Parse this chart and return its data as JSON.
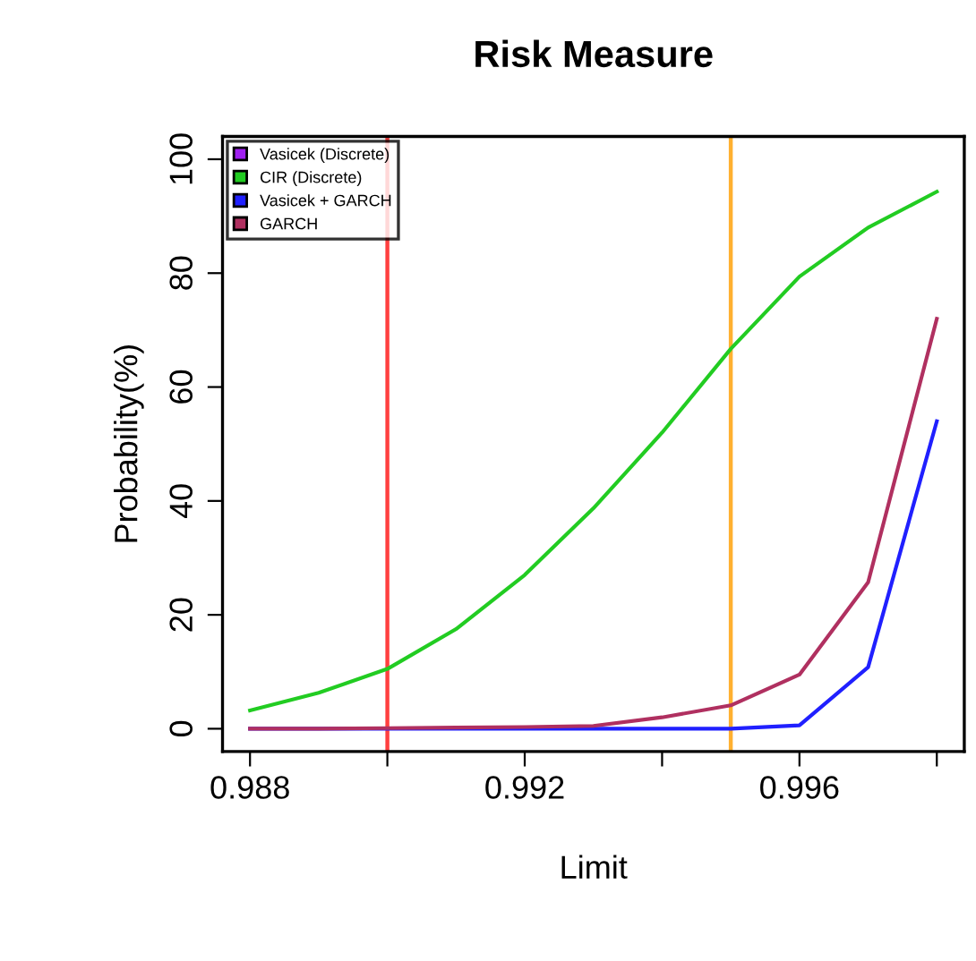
{
  "chart_data": {
    "type": "line",
    "title": "Risk Measure",
    "xlabel": "Limit",
    "ylabel": "Probability(%)",
    "x": [
      0.988,
      0.989,
      0.99,
      0.991,
      0.992,
      0.993,
      0.994,
      0.995,
      0.996,
      0.997,
      0.998
    ],
    "series": [
      {
        "name": "Vasicek (Discrete)",
        "color": "#a020f0",
        "values": [
          null,
          null,
          null,
          null,
          null,
          null,
          null,
          null,
          null,
          null,
          null
        ]
      },
      {
        "name": "CIR (Discrete)",
        "color": "#22cc22",
        "values": [
          3.2,
          6.3,
          10.5,
          17.5,
          27,
          38.7,
          52,
          66.7,
          79.4,
          88,
          94.3
        ]
      },
      {
        "name": "Vasicek + GARCH",
        "color": "#2020ff",
        "values": [
          0,
          0,
          0,
          0,
          0,
          0,
          0,
          0,
          0.6,
          10.8,
          54
        ]
      },
      {
        "name": "GARCH",
        "color": "#b03060",
        "values": [
          0,
          0,
          0.1,
          0.2,
          0.3,
          0.5,
          2,
          4.1,
          9.5,
          25.7,
          72
        ]
      }
    ],
    "xlim": [
      0.9876,
      0.9984
    ],
    "ylim": [
      -4,
      104
    ],
    "xticks": [
      0.988,
      {
        "value": 0.99,
        "label": null
      },
      0.992,
      {
        "value": 0.994,
        "label": null
      },
      0.996,
      {
        "value": 0.998,
        "label": null
      }
    ],
    "yticks": [
      0,
      20,
      40,
      60,
      80,
      100
    ],
    "ref_lines": [
      {
        "axis": "x",
        "value": 0.99,
        "color": "#ff4040"
      },
      {
        "axis": "x",
        "value": 0.995,
        "color": "#ffb030"
      }
    ],
    "legend": "top left",
    "grid": false,
    "marker": "none",
    "line_style": "solid"
  }
}
